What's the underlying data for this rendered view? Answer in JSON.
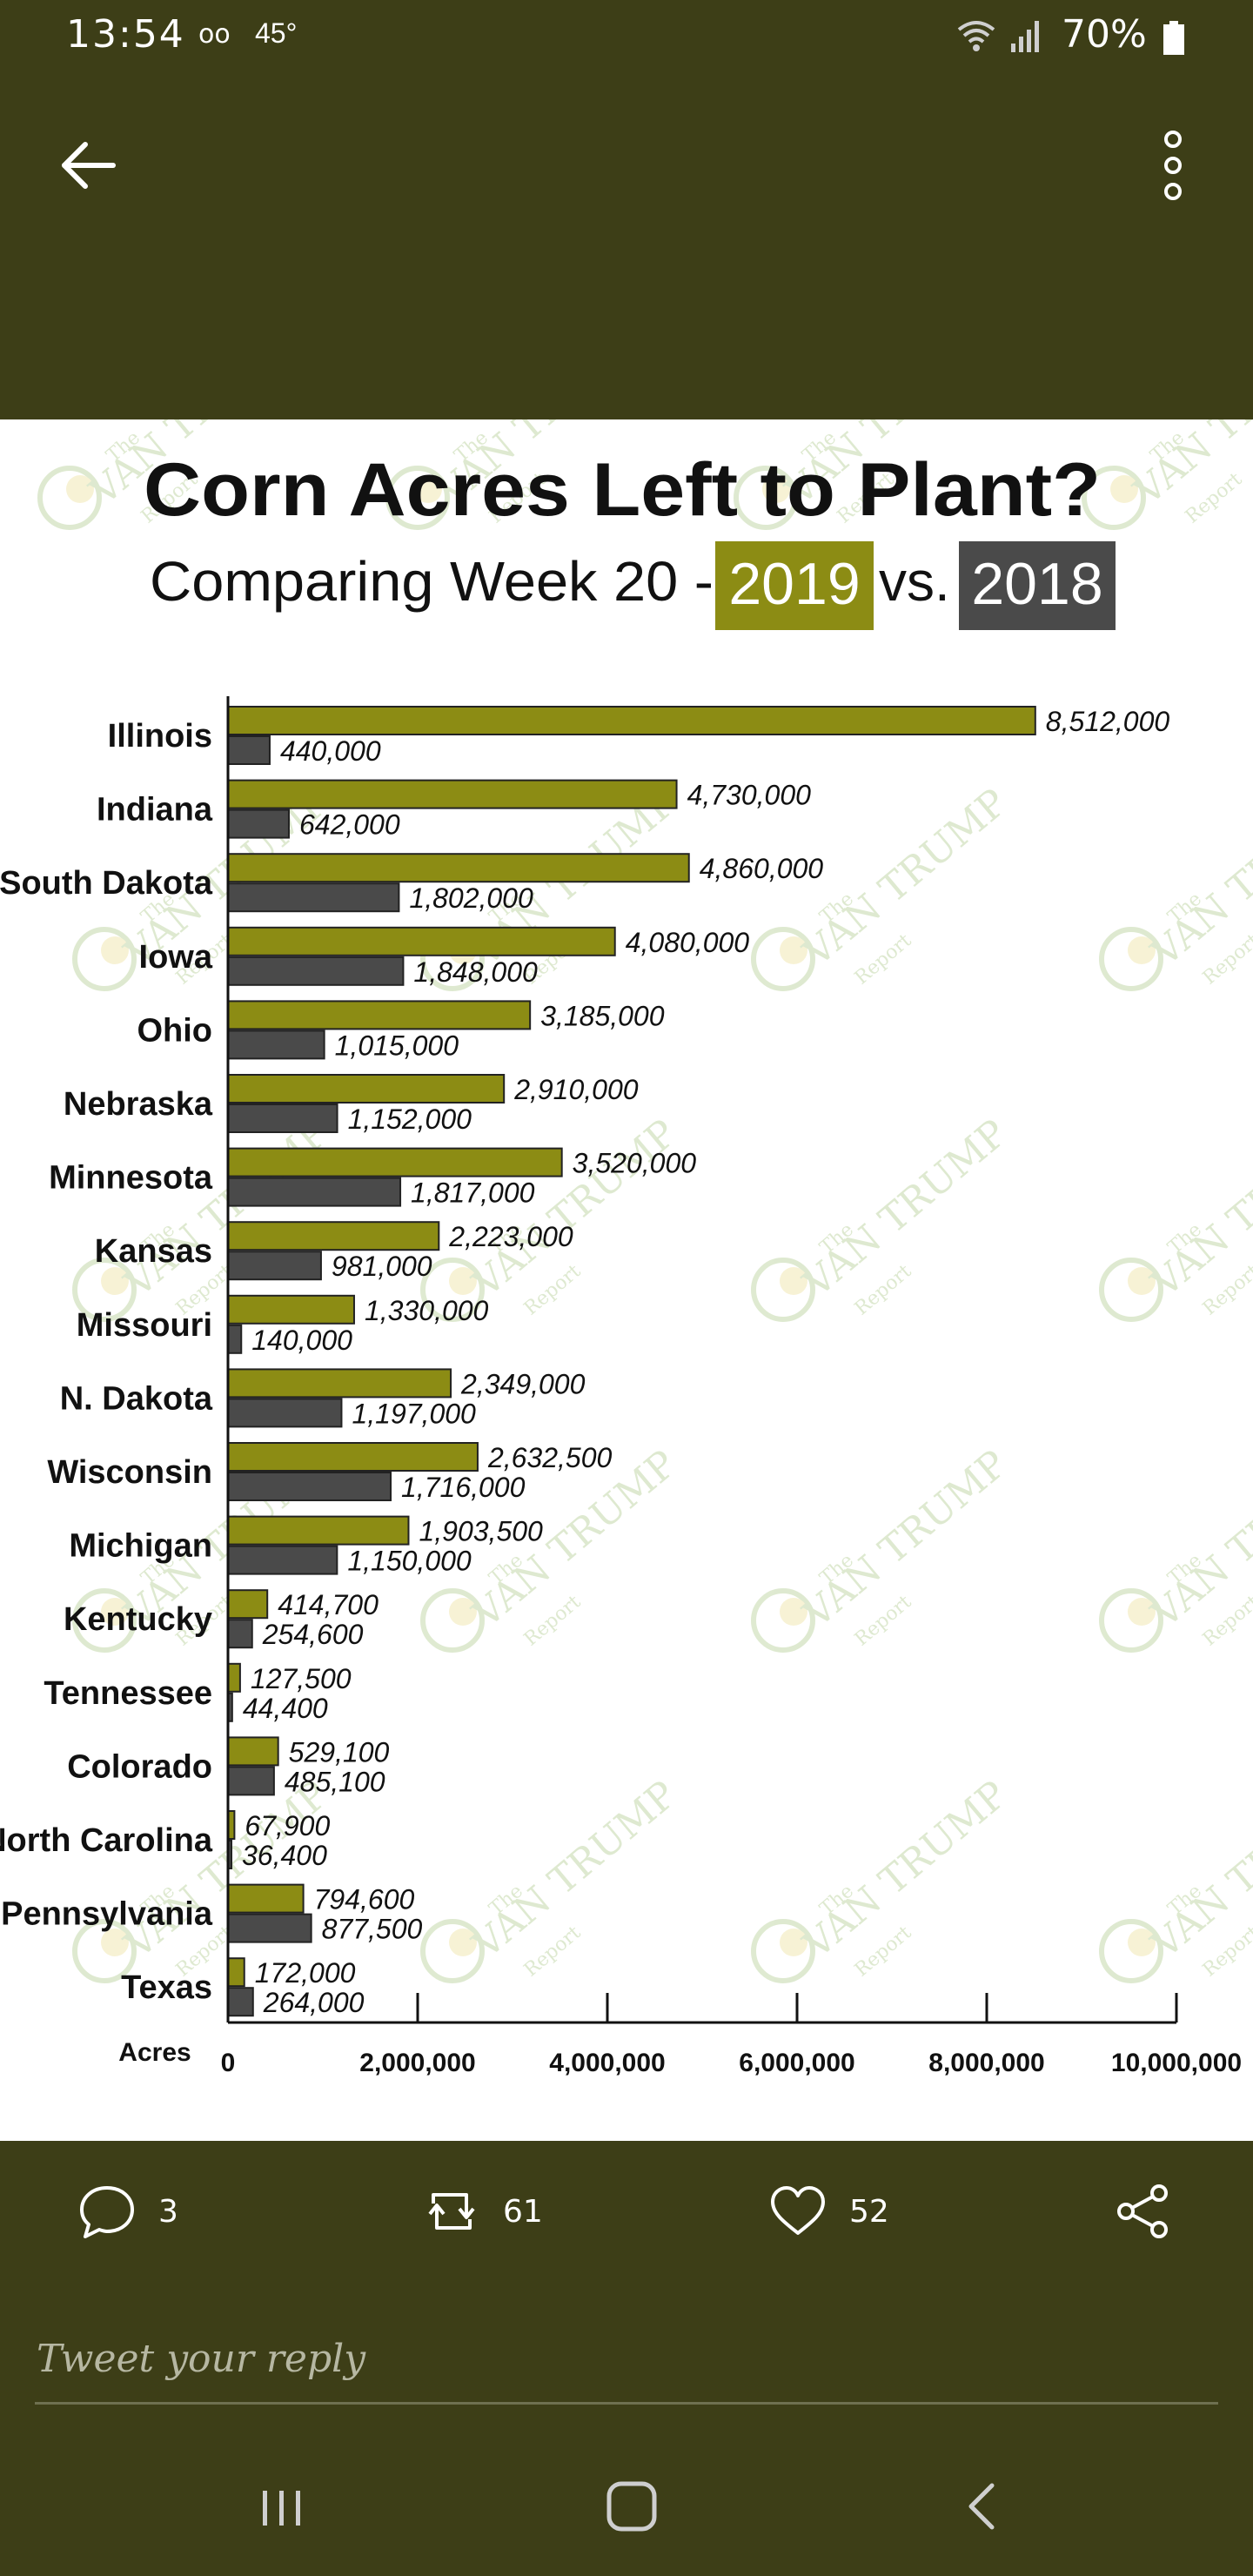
{
  "status_bar": {
    "time": "13:54",
    "voicemail_icon": "voicemail-icon",
    "temperature": "45°",
    "battery_percent": "70%"
  },
  "chart": {
    "title": "Corn Acres Left to Plant?",
    "subtitle_prefix": "Comparing Week 20 -",
    "subtitle_year_a": "2019",
    "subtitle_vs": "vs.",
    "subtitle_year_b": "2018",
    "watermark_small": "The",
    "watermark_big": "VAN TRUMP",
    "watermark_sub": "Report",
    "colors": {
      "y2019": "#8c8c14",
      "y2018": "#4a4a4a",
      "year_a_bg": "#8c8c14",
      "year_b_bg": "#4a4a4a"
    }
  },
  "chart_data": {
    "type": "bar",
    "orientation": "horizontal",
    "title": "Corn Acres Left to Plant?",
    "subtitle": "Comparing Week 20 - 2019 vs. 2018",
    "xlabel": "Acres",
    "xlim": [
      0,
      10000000
    ],
    "xticks": [
      "0",
      "2,000,000",
      "4,000,000",
      "6,000,000",
      "8,000,000",
      "10,000,000"
    ],
    "categories": [
      "Illinois",
      "Indiana",
      "South Dakota",
      "Iowa",
      "Ohio",
      "Nebraska",
      "Minnesota",
      "Kansas",
      "Missouri",
      "N. Dakota",
      "Wisconsin",
      "Michigan",
      "Kentucky",
      "Tennessee",
      "Colorado",
      "North Carolina",
      "Pennsylvania",
      "Texas"
    ],
    "series": [
      {
        "values": [
          8512000,
          4730000,
          4860000,
          4080000,
          3185000,
          2910000,
          3520000,
          2223000,
          1330000,
          2349000,
          2632500,
          1903500,
          414700,
          127500,
          529100,
          67900,
          794600,
          172000
        ],
        "labels": [
          "8,512,000",
          "4,730,000",
          "4,860,000",
          "4,080,000",
          "3,185,000",
          "2,910,000",
          "3,520,000",
          "2,223,000",
          "1,330,000",
          "2,349,000",
          "2,632,500",
          "1,903,500",
          "414,700",
          "127,500",
          "529,100",
          "67,900",
          "794,600",
          "172,000"
        ]
      },
      {
        "values": [
          440000,
          642000,
          1802000,
          1848000,
          1015000,
          1152000,
          1817000,
          981000,
          140000,
          1197000,
          1716000,
          1150000,
          254600,
          44400,
          485100,
          36400,
          877500,
          264000
        ],
        "labels": [
          "440,000",
          "642,000",
          "1,802,000",
          "1,848,000",
          "1,015,000",
          "1,152,000",
          "1,817,000",
          "981,000",
          "140,000",
          "1,197,000",
          "1,716,000",
          "1,150,000",
          "254,600",
          "44,400",
          "485,100",
          "36,400",
          "877,500",
          "264,000"
        ]
      }
    ],
    "grid": false,
    "legend": "none"
  },
  "actions": {
    "replies": "3",
    "retweets": "61",
    "likes": "52"
  },
  "reply": {
    "placeholder": "Tweet your reply"
  }
}
